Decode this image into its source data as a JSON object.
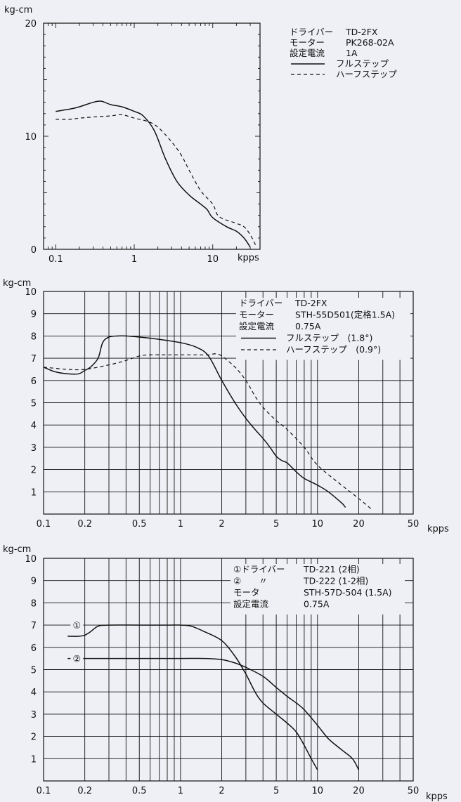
{
  "chart_data": [
    {
      "type": "line",
      "unit_label": "kg-cm",
      "xlabel": "kpps",
      "x_scale": "log",
      "xlim": [
        0.07,
        40
      ],
      "ylim": [
        0,
        20
      ],
      "grid": false,
      "x_ticks": [
        0.1,
        1,
        10
      ],
      "x_tick_labels": [
        "0.1",
        "1",
        "10"
      ],
      "y_ticks": [
        0,
        10,
        20
      ],
      "y_tick_labels": [
        "0",
        "10",
        "20"
      ],
      "legend": {
        "position": "top-right",
        "lines": [
          [
            "ドライバー",
            "TD-2FX"
          ],
          [
            "モーター",
            "PK268-02A"
          ],
          [
            "設定電流",
            "1A"
          ]
        ],
        "series_labels": [
          "フルステップ",
          "ハーフステップ"
        ]
      },
      "series": [
        {
          "name": "フルステップ",
          "style": "solid",
          "x": [
            0.1,
            0.15,
            0.2,
            0.3,
            0.38,
            0.5,
            0.7,
            1.0,
            1.3,
            1.8,
            2.5,
            3.5,
            5,
            7,
            8.5,
            10,
            15,
            20,
            25,
            30
          ],
          "y": [
            12.2,
            12.4,
            12.6,
            13.0,
            13.1,
            12.8,
            12.6,
            12.2,
            11.8,
            10.5,
            8.0,
            6.0,
            4.8,
            4.0,
            3.5,
            2.8,
            2.0,
            1.6,
            1.0,
            0.2
          ]
        },
        {
          "name": "ハーフステップ",
          "style": "dashed",
          "x": [
            0.1,
            0.15,
            0.2,
            0.3,
            0.5,
            0.7,
            1.0,
            1.5,
            2.0,
            3.0,
            4.0,
            5.0,
            7.0,
            10,
            12,
            20,
            25,
            30,
            35
          ],
          "y": [
            11.5,
            11.5,
            11.6,
            11.7,
            11.8,
            11.9,
            11.6,
            11.3,
            10.8,
            9.5,
            8.3,
            7.0,
            5.2,
            4.0,
            2.9,
            2.3,
            2.0,
            1.3,
            0.4
          ]
        }
      ]
    },
    {
      "type": "line",
      "unit_label": "kg-cm",
      "xlabel": "kpps",
      "x_scale": "log",
      "xlim": [
        0.1,
        50
      ],
      "ylim": [
        0,
        10
      ],
      "grid": true,
      "x_ticks": [
        0.1,
        0.2,
        0.5,
        1,
        2,
        5,
        10,
        20,
        50
      ],
      "x_tick_labels": [
        "0.1",
        "0.2",
        "0.5",
        "1",
        "2",
        "5",
        "10",
        "20",
        "50"
      ],
      "y_ticks": [
        1,
        2,
        3,
        4,
        5,
        6,
        7,
        8,
        9,
        10
      ],
      "y_tick_labels": [
        "1",
        "2",
        "3",
        "4",
        "5",
        "6",
        "7",
        "8",
        "9",
        "10"
      ],
      "legend": {
        "position": "top-right",
        "lines": [
          [
            "ドライバー",
            "TD-2FX"
          ],
          [
            "モーター",
            "STH-55D501(定格1.5A)"
          ],
          [
            "設定電流",
            "0.75A"
          ]
        ],
        "series_labels": [
          "フルステップ　(1.8°)",
          "ハーフステップ　(0.9°)"
        ]
      },
      "series": [
        {
          "name": "フルステップ　(1.8°)",
          "style": "solid",
          "x": [
            0.1,
            0.12,
            0.15,
            0.18,
            0.2,
            0.22,
            0.25,
            0.27,
            0.3,
            0.35,
            0.4,
            0.5,
            0.7,
            1.0,
            1.3,
            1.6,
            2.0,
            2.5,
            3.0,
            3.5,
            4.0,
            4.5,
            5.0,
            5.5,
            6.0,
            7.0,
            8.0,
            10,
            12,
            15,
            16
          ],
          "y": [
            6.6,
            6.4,
            6.3,
            6.3,
            6.45,
            6.6,
            7.0,
            7.7,
            7.95,
            8.0,
            8.0,
            7.95,
            7.85,
            7.7,
            7.5,
            7.1,
            6.0,
            5.0,
            4.3,
            3.8,
            3.4,
            3.0,
            2.6,
            2.4,
            2.3,
            1.9,
            1.6,
            1.3,
            1.0,
            0.5,
            0.3
          ]
        },
        {
          "name": "ハーフステップ　(0.9°)",
          "style": "dashed",
          "x": [
            0.1,
            0.15,
            0.2,
            0.3,
            0.4,
            0.5,
            0.6,
            0.8,
            1.0,
            1.3,
            1.6,
            1.8,
            2.0,
            2.5,
            3.0,
            3.5,
            4.0,
            5.0,
            6.0,
            8.0,
            10,
            15,
            20,
            25
          ],
          "y": [
            6.6,
            6.5,
            6.5,
            6.7,
            6.9,
            7.1,
            7.15,
            7.15,
            7.15,
            7.15,
            7.15,
            7.2,
            7.1,
            6.6,
            6.0,
            5.3,
            4.8,
            4.2,
            3.8,
            3.0,
            2.2,
            1.3,
            0.7,
            0.2
          ]
        }
      ]
    },
    {
      "type": "line",
      "unit_label": "kg-cm",
      "xlabel": "kpps",
      "x_scale": "log",
      "xlim": [
        0.1,
        50
      ],
      "ylim": [
        0,
        10
      ],
      "grid": true,
      "x_ticks": [
        0.1,
        0.2,
        0.5,
        1,
        2,
        5,
        10,
        20,
        50
      ],
      "x_tick_labels": [
        "0.1",
        "0.2",
        "0.5",
        "1",
        "2",
        "5",
        "10",
        "20",
        "50"
      ],
      "y_ticks": [
        1,
        2,
        3,
        4,
        5,
        6,
        7,
        8,
        9,
        10
      ],
      "y_tick_labels": [
        "1",
        "2",
        "3",
        "4",
        "5",
        "6",
        "7",
        "8",
        "9",
        "10"
      ],
      "legend": {
        "position": "top-right",
        "lines": [
          [
            "①ドライバー",
            "TD-221 (2相)"
          ],
          [
            "②　　〃",
            "TD-222 (1-2相)"
          ],
          [
            "モータ",
            "STH-57D-504 (1.5A)"
          ],
          [
            "設定電流",
            "0.75A"
          ]
        ],
        "series_labels": []
      },
      "series": [
        {
          "name": "①",
          "style": "solid",
          "x": [
            0.15,
            0.18,
            0.2,
            0.22,
            0.25,
            0.3,
            0.5,
            0.8,
            1.0,
            1.2,
            1.5,
            2.0,
            2.5,
            3.0,
            3.5,
            4.0,
            5.0,
            6.0,
            7.0,
            8.0,
            9.0,
            10
          ],
          "y": [
            6.5,
            6.5,
            6.55,
            6.7,
            6.95,
            7.0,
            7.0,
            7.0,
            7.0,
            6.95,
            6.7,
            6.3,
            5.6,
            4.8,
            4.0,
            3.5,
            3.0,
            2.6,
            2.2,
            1.6,
            1.0,
            0.5
          ]
        },
        {
          "name": "②",
          "style": "solid",
          "x": [
            0.15,
            0.3,
            0.5,
            1.0,
            1.5,
            2.0,
            2.5,
            3.0,
            4.0,
            5.0,
            6.0,
            7.0,
            8.0,
            10,
            12,
            15,
            18,
            20
          ],
          "y": [
            5.5,
            5.5,
            5.5,
            5.5,
            5.5,
            5.45,
            5.3,
            5.1,
            4.7,
            4.2,
            3.8,
            3.5,
            3.2,
            2.5,
            1.9,
            1.4,
            1.0,
            0.5
          ]
        }
      ]
    }
  ]
}
